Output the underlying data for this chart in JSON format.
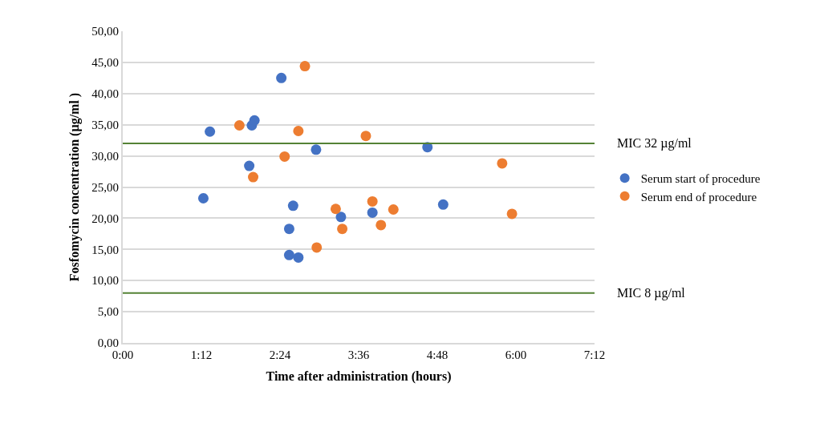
{
  "chart_data": {
    "type": "scatter",
    "xlabel": "Time after administration (hours)",
    "ylabel": "Fosfomycin concentration (µg/ml )",
    "xlim": [
      0,
      7.2
    ],
    "xticks": [
      {
        "value": 0,
        "label": "0:00"
      },
      {
        "value": 1.2,
        "label": "1:12"
      },
      {
        "value": 2.4,
        "label": "2:24"
      },
      {
        "value": 3.6,
        "label": "3:36"
      },
      {
        "value": 4.8,
        "label": "4:48"
      },
      {
        "value": 6,
        "label": "6:00"
      },
      {
        "value": 7.2,
        "label": "7:12"
      }
    ],
    "ylim": [
      0,
      50
    ],
    "yticks": [
      {
        "value": 0,
        "label": "0,00"
      },
      {
        "value": 5,
        "label": "5,00"
      },
      {
        "value": 10,
        "label": "10,00"
      },
      {
        "value": 15,
        "label": "15,00"
      },
      {
        "value": 20,
        "label": "20,00"
      },
      {
        "value": 25,
        "label": "25,00"
      },
      {
        "value": 30,
        "label": "30,00"
      },
      {
        "value": 35,
        "label": "35,00"
      },
      {
        "value": 40,
        "label": "40,00"
      },
      {
        "value": 45,
        "label": "45,00"
      },
      {
        "value": 50,
        "label": "50,00"
      }
    ],
    "grid": "y",
    "legend": "right",
    "marker": "circle",
    "series": [
      {
        "name": "Serum start of procedure",
        "color": "#4472c4",
        "x": [
          1.33,
          1.23,
          1.93,
          1.97,
          2.01,
          2.42,
          2.6,
          2.54,
          2.54,
          2.68,
          2.95,
          3.33,
          3.81,
          4.65,
          4.89
        ],
        "values": [
          33.9,
          23.2,
          28.4,
          34.9,
          35.7,
          42.5,
          22.0,
          18.3,
          14.1,
          13.7,
          31.0,
          20.2,
          20.9,
          31.4,
          22.2
        ]
      },
      {
        "name": "Serum end of procedure",
        "color": "#ed7d31",
        "x": [
          2.78,
          1.78,
          2.68,
          2.47,
          1.99,
          3.25,
          3.35,
          2.96,
          3.71,
          3.81,
          4.13,
          3.94,
          5.79,
          5.94
        ],
        "values": [
          44.4,
          34.9,
          34.0,
          29.9,
          26.6,
          21.5,
          18.3,
          15.3,
          33.2,
          22.7,
          21.4,
          18.9,
          28.8,
          20.7
        ]
      }
    ],
    "ref_lines": [
      {
        "axis": "y",
        "value": 32,
        "label": "MIC 32 µg/ml",
        "color": "#548235"
      },
      {
        "axis": "y",
        "value": 8,
        "label": "MIC 8 µg/ml",
        "color": "#548235"
      }
    ]
  }
}
